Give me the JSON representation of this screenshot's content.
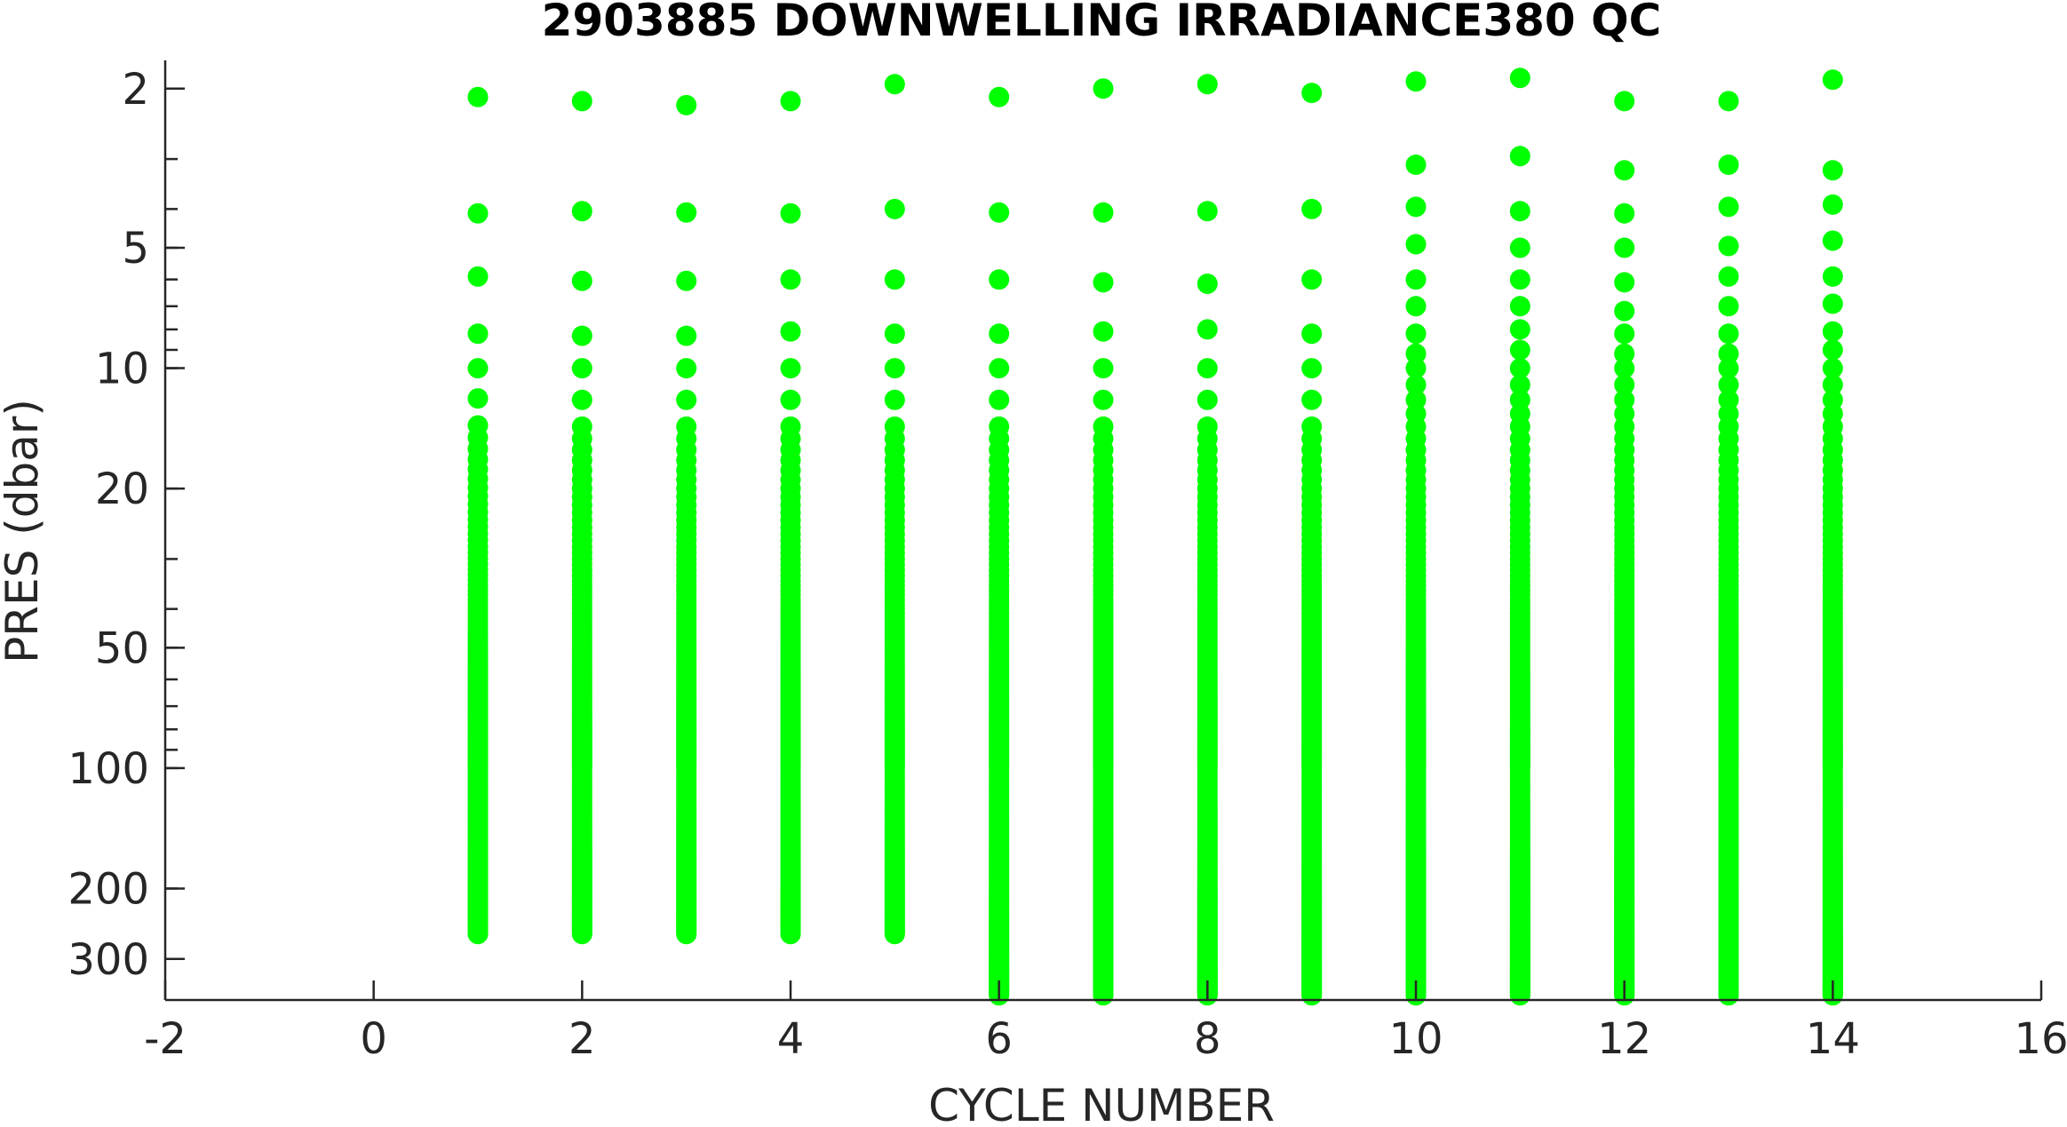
{
  "chart_data": {
    "type": "scatter",
    "title": "2903885  DOWNWELLING IRRADIANCE380 QC",
    "xlabel": "CYCLE NUMBER",
    "ylabel": "PRES (dbar)",
    "xlim": [
      -2,
      16
    ],
    "ylim": [
      1.7,
      380
    ],
    "y_scale": "log",
    "y_reversed": true,
    "grid": false,
    "marker_color": "#00ff00",
    "x_ticks": [
      -2,
      0,
      2,
      4,
      6,
      8,
      10,
      12,
      14,
      16
    ],
    "x_tick_labels": [
      "-2",
      "0",
      "2",
      "4",
      "6",
      "8",
      "10",
      "12",
      "14",
      "16"
    ],
    "y_ticks": [
      2,
      5,
      10,
      20,
      50,
      100,
      200,
      300
    ],
    "y_tick_labels": [
      "2",
      "5",
      "10",
      "20",
      "50",
      "100",
      "200",
      "300"
    ],
    "series": [
      {
        "cycle": 1,
        "top_points": [
          2.1,
          4.1,
          5.9,
          8.2,
          10.0,
          11.9,
          13.9
        ],
        "max_pres": 260
      },
      {
        "cycle": 2,
        "top_points": [
          2.15,
          4.05,
          6.05,
          8.3,
          10.0,
          12.0,
          14.0
        ],
        "max_pres": 260
      },
      {
        "cycle": 3,
        "top_points": [
          2.2,
          4.08,
          6.05,
          8.3,
          10.0,
          12.0,
          14.0
        ],
        "max_pres": 260
      },
      {
        "cycle": 4,
        "top_points": [
          2.15,
          4.1,
          6.0,
          8.1,
          10.0,
          12.0,
          14.0
        ],
        "max_pres": 260
      },
      {
        "cycle": 5,
        "top_points": [
          1.95,
          4.0,
          6.0,
          8.2,
          10.0,
          12.0,
          14.0
        ],
        "max_pres": 260
      },
      {
        "cycle": 6,
        "top_points": [
          2.1,
          4.08,
          6.0,
          8.2,
          10.0,
          12.0,
          14.0
        ],
        "max_pres": 370
      },
      {
        "cycle": 7,
        "top_points": [
          2.0,
          4.08,
          6.1,
          8.1,
          10.0,
          12.0,
          14.0
        ],
        "max_pres": 370
      },
      {
        "cycle": 8,
        "top_points": [
          1.95,
          4.05,
          6.15,
          8.0,
          10.0,
          12.0,
          14.0
        ],
        "max_pres": 370
      },
      {
        "cycle": 9,
        "top_points": [
          2.05,
          4.0,
          6.0,
          8.2,
          10.0,
          12.0,
          14.0
        ],
        "max_pres": 370
      },
      {
        "cycle": 10,
        "top_points": [
          1.92,
          3.1,
          3.95,
          4.9,
          6.0,
          7.0,
          8.2,
          9.2,
          10.0
        ],
        "max_pres": 370
      },
      {
        "cycle": 11,
        "top_points": [
          1.88,
          2.95,
          4.05,
          5.0,
          6.0,
          7.0,
          8.0,
          9.0,
          10.0
        ],
        "max_pres": 370
      },
      {
        "cycle": 12,
        "top_points": [
          2.15,
          3.2,
          4.1,
          5.0,
          6.1,
          7.2,
          8.2,
          9.2,
          10.0
        ],
        "max_pres": 370
      },
      {
        "cycle": 13,
        "top_points": [
          2.15,
          3.1,
          3.95,
          4.95,
          5.9,
          7.0,
          8.2,
          9.2,
          10.0
        ],
        "max_pres": 370
      },
      {
        "cycle": 14,
        "top_points": [
          1.9,
          3.2,
          3.9,
          4.8,
          5.9,
          6.9,
          8.1,
          9.0,
          10.0
        ],
        "max_pres": 370
      }
    ]
  }
}
